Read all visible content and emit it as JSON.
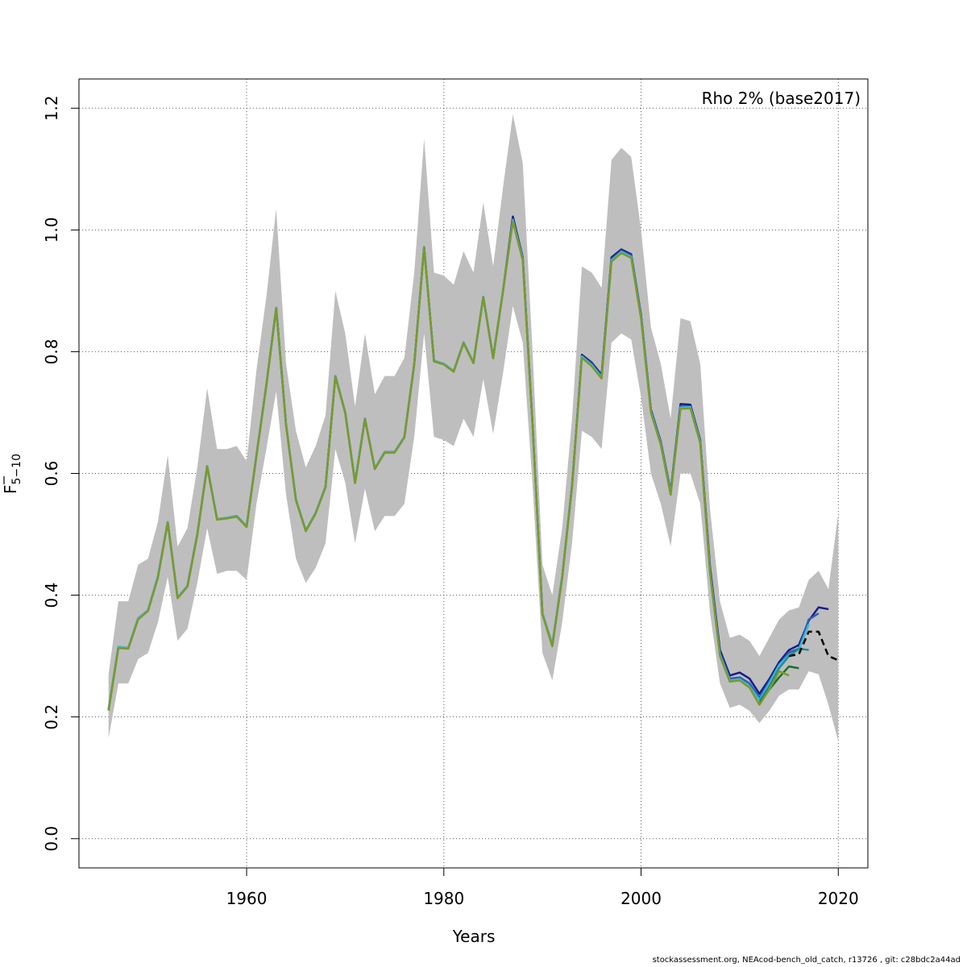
{
  "chart_data": {
    "type": "line",
    "xlabel": "Years",
    "ylabel_main": "F",
    "ylabel_sub": "5−10",
    "legend_text": "Rho 2% (base2017)",
    "xlim": [
      1943,
      2023
    ],
    "ylim": [
      -0.048,
      1.248
    ],
    "xticks": [
      1960,
      1980,
      2000,
      2020
    ],
    "yticks": [
      0.0,
      0.2,
      0.4,
      0.6,
      0.8,
      1.0,
      1.2
    ],
    "ytick_labels": [
      "0.0",
      "0.2",
      "0.4",
      "0.6",
      "0.8",
      "1.0",
      "1.2"
    ],
    "grid": true,
    "legend_position": "top-right",
    "band": {
      "x": [
        1946,
        1947,
        1948,
        1949,
        1950,
        1951,
        1952,
        1953,
        1954,
        1955,
        1956,
        1957,
        1958,
        1959,
        1960,
        1961,
        1962,
        1963,
        1964,
        1965,
        1966,
        1967,
        1968,
        1969,
        1970,
        1971,
        1972,
        1973,
        1974,
        1975,
        1976,
        1977,
        1978,
        1979,
        1980,
        1981,
        1982,
        1983,
        1984,
        1985,
        1986,
        1987,
        1988,
        1989,
        1990,
        1991,
        1992,
        1993,
        1994,
        1995,
        1996,
        1997,
        1998,
        1999,
        2000,
        2001,
        2002,
        2003,
        2004,
        2005,
        2006,
        2007,
        2008,
        2009,
        2010,
        2011,
        2012,
        2013,
        2014,
        2015,
        2016,
        2017,
        2018,
        2019,
        2020
      ],
      "upper": [
        0.27,
        0.39,
        0.39,
        0.45,
        0.46,
        0.52,
        0.63,
        0.48,
        0.51,
        0.61,
        0.74,
        0.64,
        0.64,
        0.645,
        0.62,
        0.77,
        0.89,
        1.035,
        0.78,
        0.67,
        0.61,
        0.645,
        0.695,
        0.9,
        0.83,
        0.71,
        0.83,
        0.73,
        0.76,
        0.76,
        0.79,
        0.93,
        1.15,
        0.93,
        0.925,
        0.91,
        0.965,
        0.93,
        1.045,
        0.94,
        1.07,
        1.19,
        1.11,
        0.8,
        0.45,
        0.4,
        0.51,
        0.69,
        0.94,
        0.93,
        0.905,
        1.115,
        1.135,
        1.12,
        1.0,
        0.84,
        0.78,
        0.69,
        0.855,
        0.85,
        0.78,
        0.54,
        0.39,
        0.33,
        0.335,
        0.325,
        0.3,
        0.33,
        0.36,
        0.375,
        0.38,
        0.425,
        0.44,
        0.41,
        0.535
      ],
      "lower": [
        0.165,
        0.255,
        0.255,
        0.295,
        0.305,
        0.355,
        0.43,
        0.325,
        0.345,
        0.42,
        0.51,
        0.435,
        0.44,
        0.44,
        0.425,
        0.55,
        0.64,
        0.735,
        0.565,
        0.46,
        0.42,
        0.445,
        0.485,
        0.64,
        0.585,
        0.485,
        0.575,
        0.505,
        0.53,
        0.53,
        0.55,
        0.66,
        0.83,
        0.66,
        0.655,
        0.645,
        0.69,
        0.66,
        0.755,
        0.665,
        0.765,
        0.875,
        0.815,
        0.58,
        0.305,
        0.26,
        0.355,
        0.485,
        0.67,
        0.66,
        0.64,
        0.815,
        0.83,
        0.82,
        0.725,
        0.6,
        0.55,
        0.48,
        0.6,
        0.6,
        0.55,
        0.37,
        0.255,
        0.215,
        0.22,
        0.21,
        0.19,
        0.21,
        0.235,
        0.245,
        0.245,
        0.275,
        0.27,
        0.22,
        0.16
      ]
    },
    "series": [
      {
        "color": "#1a1a8a",
        "dashed": false,
        "x": [
          1946,
          1947,
          1948,
          1949,
          1950,
          1951,
          1952,
          1953,
          1954,
          1955,
          1956,
          1957,
          1958,
          1959,
          1960,
          1961,
          1962,
          1963,
          1964,
          1965,
          1966,
          1967,
          1968,
          1969,
          1970,
          1971,
          1972,
          1973,
          1974,
          1975,
          1976,
          1977,
          1978,
          1979,
          1980,
          1981,
          1982,
          1983,
          1984,
          1985,
          1986,
          1987,
          1988,
          1989,
          1990,
          1991,
          1992,
          1993,
          1994,
          1995,
          1996,
          1997,
          1998,
          1999,
          2000,
          2001,
          2002,
          2003,
          2004,
          2005,
          2006,
          2007,
          2008,
          2009,
          2010,
          2011,
          2012,
          2013,
          2014,
          2015,
          2016,
          2017,
          2018,
          2019
        ],
        "y": [
          0.212,
          0.315,
          0.313,
          0.362,
          0.375,
          0.43,
          0.52,
          0.396,
          0.415,
          0.5,
          0.612,
          0.525,
          0.527,
          0.53,
          0.513,
          0.63,
          0.745,
          0.872,
          0.68,
          0.557,
          0.506,
          0.535,
          0.578,
          0.76,
          0.7,
          0.585,
          0.69,
          0.608,
          0.635,
          0.635,
          0.66,
          0.78,
          0.972,
          0.785,
          0.78,
          0.768,
          0.815,
          0.782,
          0.89,
          0.79,
          0.9,
          1.022,
          0.955,
          0.68,
          0.37,
          0.318,
          0.43,
          0.58,
          0.795,
          0.782,
          0.762,
          0.955,
          0.968,
          0.96,
          0.86,
          0.705,
          0.652,
          0.57,
          0.714,
          0.713,
          0.655,
          0.445,
          0.31,
          0.268,
          0.273,
          0.263,
          0.238,
          0.262,
          0.29,
          0.31,
          0.318,
          0.358,
          0.38,
          0.377
        ]
      },
      {
        "color": "#2a5fb8",
        "dashed": false,
        "x": [
          1946,
          1947,
          1948,
          1949,
          1950,
          1951,
          1952,
          1953,
          1954,
          1955,
          1956,
          1957,
          1958,
          1959,
          1960,
          1961,
          1962,
          1963,
          1964,
          1965,
          1966,
          1967,
          1968,
          1969,
          1970,
          1971,
          1972,
          1973,
          1974,
          1975,
          1976,
          1977,
          1978,
          1979,
          1980,
          1981,
          1982,
          1983,
          1984,
          1985,
          1986,
          1987,
          1988,
          1989,
          1990,
          1991,
          1992,
          1993,
          1994,
          1995,
          1996,
          1997,
          1998,
          1999,
          2000,
          2001,
          2002,
          2003,
          2004,
          2005,
          2006,
          2007,
          2008,
          2009,
          2010,
          2011,
          2012,
          2013,
          2014,
          2015,
          2016,
          2017,
          2018
        ],
        "y": [
          0.212,
          0.315,
          0.313,
          0.362,
          0.375,
          0.43,
          0.52,
          0.396,
          0.415,
          0.5,
          0.612,
          0.525,
          0.527,
          0.53,
          0.513,
          0.63,
          0.745,
          0.872,
          0.68,
          0.557,
          0.506,
          0.535,
          0.578,
          0.76,
          0.7,
          0.585,
          0.69,
          0.608,
          0.635,
          0.635,
          0.66,
          0.78,
          0.972,
          0.785,
          0.78,
          0.768,
          0.815,
          0.782,
          0.89,
          0.79,
          0.9,
          1.018,
          0.953,
          0.68,
          0.37,
          0.318,
          0.43,
          0.58,
          0.793,
          0.78,
          0.76,
          0.952,
          0.966,
          0.958,
          0.858,
          0.703,
          0.65,
          0.568,
          0.71,
          0.71,
          0.653,
          0.44,
          0.305,
          0.263,
          0.265,
          0.255,
          0.232,
          0.258,
          0.286,
          0.306,
          0.312,
          0.36,
          0.37
        ]
      },
      {
        "color": "#3bbbd8",
        "dashed": false,
        "x": [
          1946,
          1947,
          1948,
          1949,
          1950,
          1951,
          1952,
          1953,
          1954,
          1955,
          1956,
          1957,
          1958,
          1959,
          1960,
          1961,
          1962,
          1963,
          1964,
          1965,
          1966,
          1967,
          1968,
          1969,
          1970,
          1971,
          1972,
          1973,
          1974,
          1975,
          1976,
          1977,
          1978,
          1979,
          1980,
          1981,
          1982,
          1983,
          1984,
          1985,
          1986,
          1987,
          1988,
          1989,
          1990,
          1991,
          1992,
          1993,
          1994,
          1995,
          1996,
          1997,
          1998,
          1999,
          2000,
          2001,
          2002,
          2003,
          2004,
          2005,
          2006,
          2007,
          2008,
          2009,
          2010,
          2011,
          2012,
          2013,
          2014,
          2015,
          2016,
          2017
        ],
        "y": [
          0.212,
          0.315,
          0.313,
          0.362,
          0.375,
          0.43,
          0.52,
          0.396,
          0.415,
          0.5,
          0.612,
          0.525,
          0.527,
          0.53,
          0.513,
          0.63,
          0.745,
          0.872,
          0.68,
          0.557,
          0.506,
          0.535,
          0.578,
          0.76,
          0.7,
          0.585,
          0.69,
          0.608,
          0.635,
          0.635,
          0.66,
          0.78,
          0.972,
          0.785,
          0.78,
          0.768,
          0.815,
          0.782,
          0.89,
          0.79,
          0.9,
          1.016,
          0.952,
          0.68,
          0.37,
          0.318,
          0.43,
          0.58,
          0.792,
          0.778,
          0.758,
          0.95,
          0.964,
          0.956,
          0.856,
          0.702,
          0.649,
          0.567,
          0.708,
          0.709,
          0.652,
          0.437,
          0.302,
          0.26,
          0.262,
          0.25,
          0.228,
          0.255,
          0.285,
          0.302,
          0.31,
          0.352
        ]
      },
      {
        "color": "#1f9090",
        "dashed": false,
        "x": [
          2012,
          2013,
          2014,
          2015,
          2016,
          2017
        ],
        "y": [
          0.226,
          0.25,
          0.28,
          0.3,
          0.312,
          0.31
        ]
      },
      {
        "color": "#1e6e2e",
        "dashed": false,
        "x": [
          2012,
          2013,
          2014,
          2015,
          2016
        ],
        "y": [
          0.222,
          0.245,
          0.265,
          0.283,
          0.28
        ]
      },
      {
        "color": "#7a9a2a",
        "dashed": false,
        "x": [
          1946,
          1947,
          1948,
          1949,
          1950,
          1951,
          1952,
          1953,
          1954,
          1955,
          1956,
          1957,
          1958,
          1959,
          1960,
          1961,
          1962,
          1963,
          1964,
          1965,
          1966,
          1967,
          1968,
          1969,
          1970,
          1971,
          1972,
          1973,
          1974,
          1975,
          1976,
          1977,
          1978,
          1979,
          1980,
          1981,
          1982,
          1983,
          1984,
          1985,
          1986,
          1987,
          1988,
          1989,
          1990,
          1991,
          1992,
          1993,
          1994,
          1995,
          1996,
          1997,
          1998,
          1999,
          2000,
          2001,
          2002,
          2003,
          2004,
          2005,
          2006,
          2007,
          2008,
          2009,
          2010,
          2011,
          2012,
          2013,
          2014,
          2015
        ],
        "y": [
          0.21,
          0.313,
          0.312,
          0.36,
          0.374,
          0.428,
          0.519,
          0.395,
          0.414,
          0.499,
          0.611,
          0.524,
          0.526,
          0.529,
          0.512,
          0.629,
          0.744,
          0.871,
          0.679,
          0.556,
          0.505,
          0.534,
          0.577,
          0.759,
          0.699,
          0.584,
          0.689,
          0.607,
          0.634,
          0.634,
          0.659,
          0.779,
          0.971,
          0.784,
          0.779,
          0.767,
          0.814,
          0.781,
          0.889,
          0.789,
          0.899,
          1.014,
          0.95,
          0.678,
          0.368,
          0.316,
          0.428,
          0.578,
          0.79,
          0.776,
          0.756,
          0.948,
          0.962,
          0.954,
          0.854,
          0.7,
          0.647,
          0.565,
          0.706,
          0.707,
          0.65,
          0.435,
          0.3,
          0.258,
          0.26,
          0.248,
          0.22,
          0.245,
          0.275,
          0.268
        ]
      },
      {
        "color": "#000000",
        "dashed": true,
        "x": [
          2015,
          2016,
          2017,
          2018,
          2019,
          2020
        ],
        "y": [
          0.3,
          0.303,
          0.34,
          0.34,
          0.3,
          0.293
        ]
      }
    ]
  },
  "footer": "stockassessment.org, NEAcod-bench_old_catch, r13726 , git: c28bdc2a44ad"
}
